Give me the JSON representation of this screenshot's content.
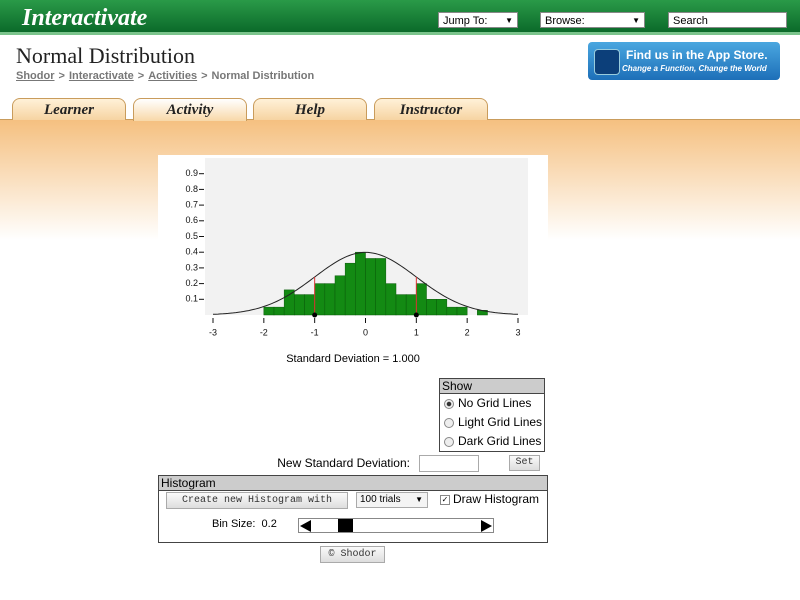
{
  "header": {
    "logo": "Interactivate",
    "jump_to": "Jump To:",
    "browse": "Browse:",
    "search": "Search"
  },
  "page": {
    "title": "Normal Distribution",
    "breadcrumb": [
      "Shodor",
      "Interactivate",
      "Activities",
      "Normal Distribution"
    ],
    "separator": ">",
    "app_store": {
      "line1": "Find us in the App Store.",
      "line2": "Change a Function, Change the World"
    }
  },
  "tabs": [
    "Learner",
    "Activity",
    "Help",
    "Instructor"
  ],
  "active_tab": "Activity",
  "chart_data": {
    "type": "histogram",
    "bins": [
      -2.0,
      -1.8,
      -1.6,
      -1.4,
      -1.2,
      -1.0,
      -0.8,
      -0.6,
      -0.4,
      -0.2,
      0.0,
      0.2,
      0.4,
      0.6,
      0.8,
      1.0,
      1.2,
      1.4,
      1.6,
      1.8,
      2.0,
      2.2,
      2.4
    ],
    "values": [
      0.05,
      0.05,
      0.16,
      0.13,
      0.13,
      0.2,
      0.2,
      0.25,
      0.33,
      0.4,
      0.36,
      0.36,
      0.2,
      0.13,
      0.13,
      0.2,
      0.1,
      0.1,
      0.05,
      0.05,
      0,
      0.03
    ],
    "color": "#138a13",
    "xlim": [
      -3,
      3
    ],
    "ylim": [
      0,
      1
    ],
    "xticks": [
      -3,
      -2,
      -1,
      0,
      1,
      2,
      3
    ],
    "yticks": [
      0.1,
      0.2,
      0.3,
      0.4,
      0.5,
      0.6,
      0.7,
      0.8,
      0.9
    ],
    "grid": false,
    "std_dev": 1,
    "std_dev_label": "Standard Deviation = 1.000"
  },
  "controls": {
    "show_title": "Show",
    "grid_options": [
      "No Grid Lines",
      "Light Grid Lines",
      "Dark Grid Lines"
    ],
    "grid_selected": "No Grid Lines",
    "new_sd_label": "New Standard Deviation:",
    "set_button": "Set",
    "histogram_title": "Histogram",
    "create_button": "Create new Histogram with",
    "trials": "100 trials",
    "draw_histogram": "Draw Histogram",
    "bin_size_label": "Bin Size:",
    "bin_size": "0.2",
    "copyright": "© Shodor"
  }
}
